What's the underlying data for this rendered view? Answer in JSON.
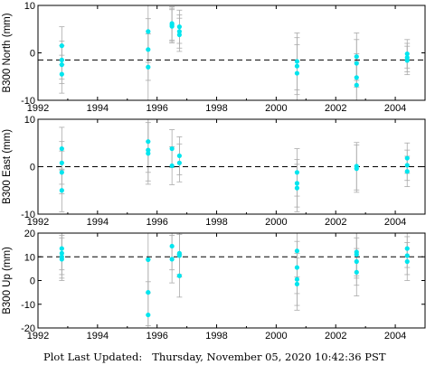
{
  "footer": {
    "label": "Plot Last Updated:",
    "timestamp": "Thursday, November 05, 2020 10:42:36 PST"
  },
  "chart_data": [
    {
      "type": "scatter",
      "ylabel": "B300 North (mm)",
      "xlim": [
        1992,
        2005
      ],
      "ylim": [
        -10,
        10
      ],
      "xticks": [
        "1992",
        "1994",
        "1996",
        "1998",
        "2000",
        "2002",
        "2004"
      ],
      "yticks": [
        "-10",
        "0",
        "10"
      ],
      "reference_line": -1.5,
      "points": [
        {
          "x": 1992.8,
          "y": 1.5,
          "err": 4.0
        },
        {
          "x": 1992.8,
          "y": -1.5,
          "err": 4.0
        },
        {
          "x": 1992.8,
          "y": -2.5,
          "err": 4.0
        },
        {
          "x": 1992.8,
          "y": -4.5,
          "err": 4.0
        },
        {
          "x": 1995.7,
          "y": 4.5,
          "err": 6.5
        },
        {
          "x": 1995.7,
          "y": 0.7,
          "err": 6.5
        },
        {
          "x": 1995.7,
          "y": -3.0,
          "err": 7.0
        },
        {
          "x": 1996.5,
          "y": 6.2,
          "err": 3.5
        },
        {
          "x": 1996.5,
          "y": 5.9,
          "err": 3.5
        },
        {
          "x": 1996.5,
          "y": 5.6,
          "err": 3.5
        },
        {
          "x": 1996.75,
          "y": 5.5,
          "err": 3.5
        },
        {
          "x": 1996.75,
          "y": 4.5,
          "err": 3.5
        },
        {
          "x": 1996.75,
          "y": 3.8,
          "err": 3.5
        },
        {
          "x": 2000.7,
          "y": -1.8,
          "err": 6.0
        },
        {
          "x": 2000.7,
          "y": -2.8,
          "err": 6.0
        },
        {
          "x": 2000.7,
          "y": -4.3,
          "err": 6.0
        },
        {
          "x": 2002.7,
          "y": -0.8,
          "err": 5.0
        },
        {
          "x": 2002.7,
          "y": -2.2,
          "err": 5.0
        },
        {
          "x": 2002.7,
          "y": -5.2,
          "err": 5.0
        },
        {
          "x": 2002.7,
          "y": -6.8,
          "err": 5.0
        },
        {
          "x": 2004.4,
          "y": -0.2,
          "err": 3.0
        },
        {
          "x": 2004.4,
          "y": -1.0,
          "err": 3.0
        },
        {
          "x": 2004.4,
          "y": -1.6,
          "err": 3.0
        }
      ]
    },
    {
      "type": "scatter",
      "ylabel": "B300 East (mm)",
      "xlim": [
        1992,
        2005
      ],
      "ylim": [
        -10,
        10
      ],
      "xticks": [
        "1992",
        "1994",
        "1996",
        "1998",
        "2000",
        "2002",
        "2004"
      ],
      "yticks": [
        "-10",
        "0",
        "10"
      ],
      "reference_line": 0,
      "points": [
        {
          "x": 1992.8,
          "y": 3.8,
          "err": 4.5
        },
        {
          "x": 1992.8,
          "y": 0.8,
          "err": 4.5
        },
        {
          "x": 1992.8,
          "y": -1.2,
          "err": 4.5
        },
        {
          "x": 1992.8,
          "y": -5.0,
          "err": 4.5
        },
        {
          "x": 1995.7,
          "y": 5.3,
          "err": 6.5
        },
        {
          "x": 1995.7,
          "y": 3.5,
          "err": 6.5
        },
        {
          "x": 1995.7,
          "y": 2.8,
          "err": 6.5
        },
        {
          "x": 1996.5,
          "y": 3.8,
          "err": 4.0
        },
        {
          "x": 1996.5,
          "y": 0.2,
          "err": 4.0
        },
        {
          "x": 1996.75,
          "y": 2.3,
          "err": 4.0
        },
        {
          "x": 1996.75,
          "y": 0.8,
          "err": 4.0
        },
        {
          "x": 2000.7,
          "y": -1.2,
          "err": 5.0
        },
        {
          "x": 2000.7,
          "y": -3.5,
          "err": 5.0
        },
        {
          "x": 2000.7,
          "y": -4.5,
          "err": 5.0
        },
        {
          "x": 2002.7,
          "y": 0.1,
          "err": 5.0
        },
        {
          "x": 2002.7,
          "y": -0.4,
          "err": 5.0
        },
        {
          "x": 2004.4,
          "y": 1.8,
          "err": 3.2
        },
        {
          "x": 2004.4,
          "y": 0.3,
          "err": 3.2
        },
        {
          "x": 2004.4,
          "y": -1.0,
          "err": 3.2
        }
      ]
    },
    {
      "type": "scatter",
      "ylabel": "B300 Up (mm)",
      "xlim": [
        1992,
        2005
      ],
      "ylim": [
        -20,
        20
      ],
      "xticks": [
        "1992",
        "1994",
        "1996",
        "1998",
        "2000",
        "2002",
        "2004"
      ],
      "yticks": [
        "-20",
        "-10",
        "0",
        "10",
        "20"
      ],
      "reference_line": 10,
      "points": [
        {
          "x": 1992.8,
          "y": 13.5,
          "err": 9.0
        },
        {
          "x": 1992.8,
          "y": 11.5,
          "err": 9.0
        },
        {
          "x": 1992.8,
          "y": 10.0,
          "err": 9.0
        },
        {
          "x": 1992.8,
          "y": 9.0,
          "err": 9.0
        },
        {
          "x": 1995.7,
          "y": 8.8,
          "err": 14.0
        },
        {
          "x": 1995.7,
          "y": -5.0,
          "err": 14.0
        },
        {
          "x": 1995.7,
          "y": -14.5,
          "err": 14.0
        },
        {
          "x": 1996.5,
          "y": 14.5,
          "err": 10.0
        },
        {
          "x": 1996.5,
          "y": 9.0,
          "err": 10.0
        },
        {
          "x": 1996.75,
          "y": 11.5,
          "err": 9.0
        },
        {
          "x": 1996.75,
          "y": 10.5,
          "err": 9.0
        },
        {
          "x": 1996.75,
          "y": 2.0,
          "err": 9.0
        },
        {
          "x": 2000.7,
          "y": 12.5,
          "err": 11.0
        },
        {
          "x": 2000.7,
          "y": 5.5,
          "err": 11.0
        },
        {
          "x": 2000.7,
          "y": 0.5,
          "err": 11.0
        },
        {
          "x": 2000.7,
          "y": -1.5,
          "err": 11.0
        },
        {
          "x": 2002.7,
          "y": 12.0,
          "err": 10.0
        },
        {
          "x": 2002.7,
          "y": 11.0,
          "err": 10.0
        },
        {
          "x": 2002.7,
          "y": 8.0,
          "err": 10.0
        },
        {
          "x": 2002.7,
          "y": 3.5,
          "err": 10.0
        },
        {
          "x": 2004.4,
          "y": 13.5,
          "err": 8.0
        },
        {
          "x": 2004.4,
          "y": 10.5,
          "err": 8.0
        },
        {
          "x": 2004.4,
          "y": 8.0,
          "err": 8.0
        }
      ]
    }
  ],
  "colors": {
    "point": "#00e5ee",
    "error_bar": "#aaaaaa",
    "reference_line": "#000000",
    "axis": "#000000"
  }
}
